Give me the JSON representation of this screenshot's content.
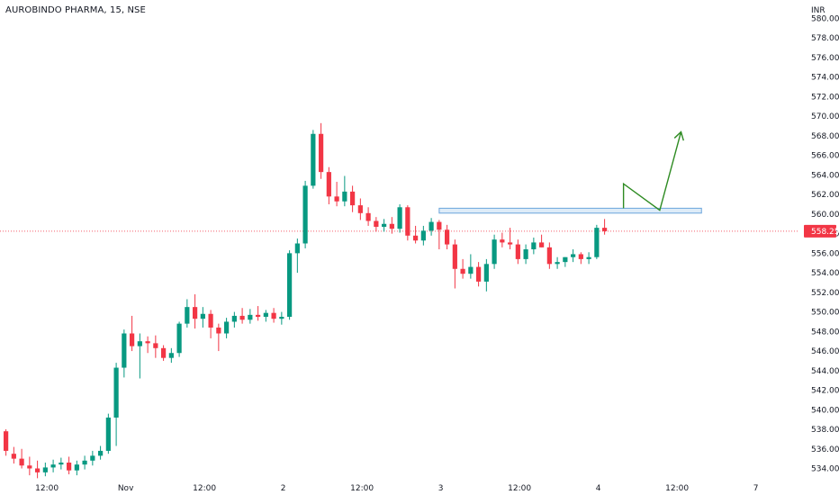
{
  "chart_title": "AUROBINDO PHARMA, 15, NSE",
  "colors": {
    "up": "#089981",
    "down": "#f23645",
    "annotation": "#2e8b22",
    "zone_fill": "#dbeaf8",
    "zone_stroke": "#5a9bd8",
    "price_line": "#f23645"
  },
  "chart_data": {
    "type": "candlestick",
    "title": "AUROBINDO PHARMA, 15, NSE",
    "currency": "INR",
    "last_price": 558.25,
    "last_price_label": "558.25",
    "ylim": [
      533.5,
      580.5
    ],
    "y_ticks": [
      534,
      536,
      538,
      540,
      542,
      544,
      546,
      548,
      550,
      552,
      554,
      556,
      558,
      560,
      562,
      564,
      566,
      568,
      570,
      572,
      574,
      576,
      578,
      580
    ],
    "y_tick_labels": [
      "534.00",
      "536.00",
      "538.00",
      "540.00",
      "542.00",
      "544.00",
      "546.00",
      "548.00",
      "550.00",
      "552.00",
      "554.00",
      "556.00",
      "558.00",
      "560.00",
      "562.00",
      "564.00",
      "566.00",
      "568.00",
      "570.00",
      "572.00",
      "574.00",
      "576.00",
      "578.00",
      "580.00"
    ],
    "x_labels": [
      {
        "label": "12:00",
        "bar": 5.5
      },
      {
        "label": "Nov",
        "bar": 15.5
      },
      {
        "label": "12:00",
        "bar": 25.5
      },
      {
        "label": "2",
        "bar": 35.5
      },
      {
        "label": "12:00",
        "bar": 45.5
      },
      {
        "label": "3",
        "bar": 55.5
      },
      {
        "label": "12:00",
        "bar": 65.5
      },
      {
        "label": "4",
        "bar": 75.5
      },
      {
        "label": "12:00",
        "bar": 85.5
      },
      {
        "label": "7",
        "bar": 95.5
      }
    ],
    "candles": [
      [
        537.8,
        538.0,
        535.3,
        535.8
      ],
      [
        535.5,
        536.2,
        534.5,
        535.0
      ],
      [
        535.0,
        536.0,
        534.0,
        534.3
      ],
      [
        534.3,
        535.2,
        533.3,
        534.0
      ],
      [
        534.0,
        534.8,
        533.0,
        533.6
      ],
      [
        533.6,
        534.6,
        533.2,
        534.1
      ],
      [
        534.1,
        534.9,
        533.6,
        534.4
      ],
      [
        534.4,
        535.1,
        533.9,
        534.6
      ],
      [
        534.6,
        535.2,
        533.4,
        533.8
      ],
      [
        533.8,
        534.8,
        533.3,
        534.4
      ],
      [
        534.4,
        535.3,
        533.9,
        534.8
      ],
      [
        534.8,
        535.8,
        534.3,
        535.3
      ],
      [
        535.3,
        536.3,
        534.9,
        535.8
      ],
      [
        535.8,
        539.6,
        535.5,
        539.2
      ],
      [
        539.2,
        544.8,
        536.3,
        544.3
      ],
      [
        544.3,
        548.2,
        543.3,
        547.8
      ],
      [
        547.8,
        549.6,
        546.0,
        546.5
      ],
      [
        546.5,
        547.8,
        543.2,
        547.0
      ],
      [
        547.0,
        547.5,
        545.8,
        546.8
      ],
      [
        546.8,
        547.6,
        545.3,
        546.3
      ],
      [
        546.3,
        546.6,
        545.0,
        545.3
      ],
      [
        545.3,
        546.3,
        544.8,
        545.8
      ],
      [
        545.8,
        549.0,
        545.4,
        548.8
      ],
      [
        548.8,
        551.3,
        548.4,
        550.5
      ],
      [
        550.5,
        551.8,
        548.3,
        549.3
      ],
      [
        549.3,
        550.5,
        548.4,
        549.8
      ],
      [
        549.8,
        550.2,
        547.3,
        548.4
      ],
      [
        548.4,
        548.8,
        546.0,
        547.8
      ],
      [
        547.8,
        549.4,
        547.3,
        549.0
      ],
      [
        549.0,
        550.0,
        548.4,
        549.6
      ],
      [
        549.6,
        550.4,
        548.8,
        549.2
      ],
      [
        549.2,
        550.3,
        548.8,
        549.7
      ],
      [
        549.7,
        550.6,
        549.1,
        549.5
      ],
      [
        549.5,
        550.2,
        549.0,
        549.9
      ],
      [
        549.9,
        550.4,
        548.9,
        549.3
      ],
      [
        549.3,
        550.0,
        548.7,
        549.5
      ],
      [
        549.5,
        556.3,
        549.2,
        556.0
      ],
      [
        556.0,
        557.5,
        554.0,
        557.0
      ],
      [
        557.0,
        563.4,
        556.5,
        562.9
      ],
      [
        562.9,
        568.6,
        562.6,
        568.2
      ],
      [
        568.2,
        569.3,
        563.6,
        564.3
      ],
      [
        564.3,
        564.8,
        561.0,
        561.8
      ],
      [
        561.8,
        563.3,
        560.8,
        561.3
      ],
      [
        561.3,
        563.9,
        560.8,
        562.3
      ],
      [
        562.3,
        562.9,
        560.2,
        560.9
      ],
      [
        560.9,
        561.6,
        559.4,
        560.1
      ],
      [
        560.1,
        560.7,
        558.8,
        559.3
      ],
      [
        559.3,
        559.7,
        558.2,
        558.7
      ],
      [
        558.7,
        559.5,
        558.2,
        559.0
      ],
      [
        559.0,
        559.7,
        558.0,
        558.5
      ],
      [
        558.5,
        561.0,
        558.1,
        560.7
      ],
      [
        560.7,
        560.9,
        557.3,
        557.8
      ],
      [
        557.8,
        558.8,
        557.0,
        557.3
      ],
      [
        557.3,
        558.8,
        556.8,
        558.3
      ],
      [
        558.3,
        559.6,
        557.8,
        559.2
      ],
      [
        559.2,
        559.4,
        556.4,
        558.4
      ],
      [
        558.4,
        558.9,
        556.4,
        556.9
      ],
      [
        556.9,
        557.4,
        552.4,
        554.4
      ],
      [
        554.4,
        555.4,
        553.4,
        553.9
      ],
      [
        553.9,
        555.9,
        553.4,
        554.6
      ],
      [
        554.6,
        555.1,
        552.6,
        553.1
      ],
      [
        553.1,
        555.4,
        552.1,
        554.9
      ],
      [
        554.9,
        557.9,
        554.4,
        557.4
      ],
      [
        557.4,
        558.1,
        556.6,
        557.1
      ],
      [
        557.1,
        558.6,
        556.4,
        556.9
      ],
      [
        556.9,
        557.4,
        554.9,
        555.4
      ],
      [
        555.4,
        556.9,
        554.9,
        556.4
      ],
      [
        556.4,
        557.6,
        555.9,
        557.1
      ],
      [
        557.1,
        557.9,
        556.6,
        556.6
      ],
      [
        556.6,
        557.1,
        554.4,
        554.9
      ],
      [
        554.9,
        555.6,
        554.4,
        555.1
      ],
      [
        555.1,
        555.6,
        554.6,
        555.6
      ],
      [
        555.6,
        556.4,
        555.1,
        555.9
      ],
      [
        555.9,
        556.1,
        554.9,
        555.4
      ],
      [
        555.4,
        556.1,
        554.9,
        555.6
      ],
      [
        555.6,
        558.9,
        555.4,
        558.6
      ],
      [
        558.6,
        559.5,
        557.9,
        558.25
      ]
    ],
    "resistance_zone": {
      "low": 560.1,
      "high": 560.6,
      "from_bar": 55.3,
      "to_bar": 88.6
    },
    "projection_path": [
      {
        "bar": 78.7,
        "price": 560.6
      },
      {
        "bar": 78.7,
        "price": 563.1
      },
      {
        "bar": 83.3,
        "price": 560.4
      },
      {
        "bar": 86.0,
        "price": 568.4
      }
    ]
  }
}
